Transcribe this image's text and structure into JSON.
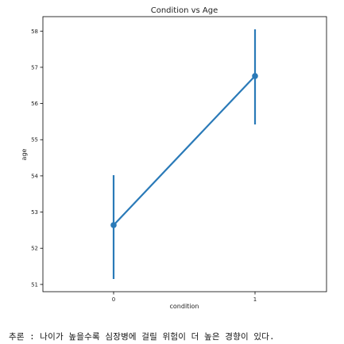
{
  "chart_data": {
    "type": "line",
    "title": "Condition vs Age",
    "xlabel": "condition",
    "ylabel": "age",
    "categories": [
      "0",
      "1"
    ],
    "series": [
      {
        "values": [
          52.64,
          56.76
        ],
        "ci_low": [
          51.15,
          55.42
        ],
        "ci_high": [
          54.02,
          58.05
        ]
      }
    ],
    "ylim": [
      50.8,
      58.4
    ],
    "yticks": [
      51,
      52,
      53,
      54,
      55,
      56,
      57,
      58
    ],
    "grid": false,
    "legend": "none",
    "color": "#2a7ab8"
  },
  "caption": "추론 : 나이가 높을수록 심장병에 걸릴 위험이 더 높은 경향이 있다."
}
